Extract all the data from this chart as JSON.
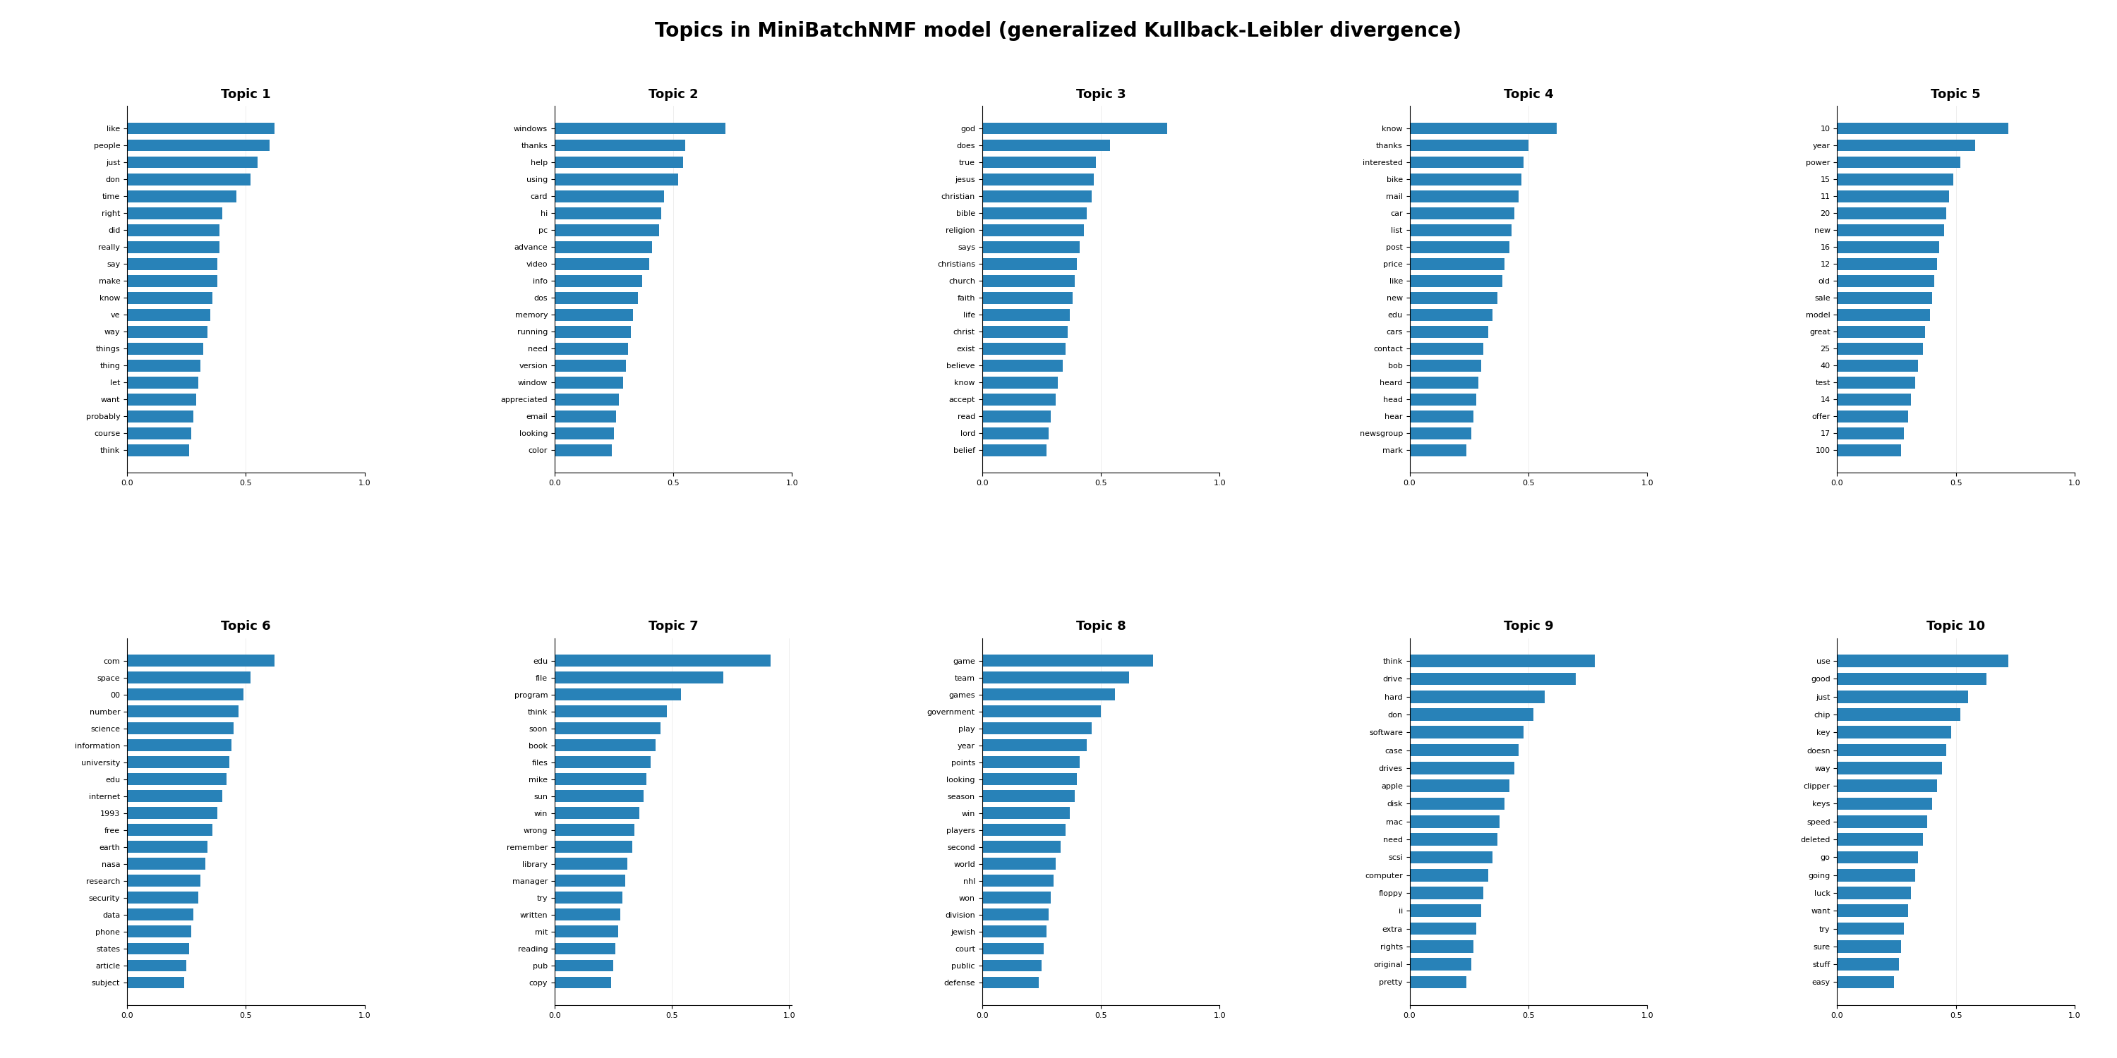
{
  "title": "Topics in MiniBatchNMF model (generalized Kullback-Leibler divergence)",
  "bar_color": "#2882b8",
  "topics": [
    {
      "title": "Topic 1",
      "words": [
        "like",
        "people",
        "just",
        "don",
        "time",
        "right",
        "did",
        "really",
        "say",
        "make",
        "know",
        "ve",
        "way",
        "things",
        "thing",
        "let",
        "want",
        "probably",
        "course",
        "think"
      ],
      "values": [
        0.62,
        0.6,
        0.55,
        0.52,
        0.46,
        0.4,
        0.39,
        0.39,
        0.38,
        0.38,
        0.36,
        0.35,
        0.34,
        0.32,
        0.31,
        0.3,
        0.29,
        0.28,
        0.27,
        0.26
      ]
    },
    {
      "title": "Topic 2",
      "words": [
        "windows",
        "thanks",
        "help",
        "using",
        "card",
        "hi",
        "pc",
        "advance",
        "video",
        "info",
        "dos",
        "memory",
        "running",
        "need",
        "version",
        "window",
        "appreciated",
        "email",
        "looking",
        "color"
      ],
      "values": [
        0.72,
        0.55,
        0.54,
        0.52,
        0.46,
        0.45,
        0.44,
        0.41,
        0.4,
        0.37,
        0.35,
        0.33,
        0.32,
        0.31,
        0.3,
        0.29,
        0.27,
        0.26,
        0.25,
        0.24
      ]
    },
    {
      "title": "Topic 3",
      "words": [
        "god",
        "does",
        "true",
        "jesus",
        "christian",
        "bible",
        "religion",
        "says",
        "christians",
        "church",
        "faith",
        "life",
        "christ",
        "exist",
        "believe",
        "know",
        "accept",
        "read",
        "lord",
        "belief"
      ],
      "values": [
        0.78,
        0.54,
        0.48,
        0.47,
        0.46,
        0.44,
        0.43,
        0.41,
        0.4,
        0.39,
        0.38,
        0.37,
        0.36,
        0.35,
        0.34,
        0.32,
        0.31,
        0.29,
        0.28,
        0.27
      ]
    },
    {
      "title": "Topic 4",
      "words": [
        "know",
        "thanks",
        "interested",
        "bike",
        "mail",
        "car",
        "list",
        "post",
        "price",
        "like",
        "new",
        "edu",
        "cars",
        "contact",
        "bob",
        "heard",
        "head",
        "hear",
        "newsgroup",
        "mark"
      ],
      "values": [
        0.62,
        0.5,
        0.48,
        0.47,
        0.46,
        0.44,
        0.43,
        0.42,
        0.4,
        0.39,
        0.37,
        0.35,
        0.33,
        0.31,
        0.3,
        0.29,
        0.28,
        0.27,
        0.26,
        0.24
      ]
    },
    {
      "title": "Topic 5",
      "words": [
        "10",
        "year",
        "power",
        "15",
        "11",
        "20",
        "new",
        "16",
        "12",
        "old",
        "sale",
        "model",
        "great",
        "25",
        "40",
        "test",
        "14",
        "offer",
        "17",
        "100"
      ],
      "values": [
        0.72,
        0.58,
        0.52,
        0.49,
        0.47,
        0.46,
        0.45,
        0.43,
        0.42,
        0.41,
        0.4,
        0.39,
        0.37,
        0.36,
        0.34,
        0.33,
        0.31,
        0.3,
        0.28,
        0.27
      ]
    },
    {
      "title": "Topic 6",
      "words": [
        "com",
        "space",
        "00",
        "number",
        "science",
        "information",
        "university",
        "edu",
        "internet",
        "1993",
        "free",
        "earth",
        "nasa",
        "research",
        "security",
        "data",
        "phone",
        "states",
        "article",
        "subject"
      ],
      "values": [
        0.62,
        0.52,
        0.49,
        0.47,
        0.45,
        0.44,
        0.43,
        0.42,
        0.4,
        0.38,
        0.36,
        0.34,
        0.33,
        0.31,
        0.3,
        0.28,
        0.27,
        0.26,
        0.25,
        0.24
      ]
    },
    {
      "title": "Topic 7",
      "words": [
        "edu",
        "file",
        "program",
        "think",
        "soon",
        "book",
        "files",
        "mike",
        "sun",
        "win",
        "wrong",
        "remember",
        "library",
        "manager",
        "try",
        "written",
        "mit",
        "reading",
        "pub",
        "copy"
      ],
      "values": [
        0.92,
        0.72,
        0.54,
        0.48,
        0.45,
        0.43,
        0.41,
        0.39,
        0.38,
        0.36,
        0.34,
        0.33,
        0.31,
        0.3,
        0.29,
        0.28,
        0.27,
        0.26,
        0.25,
        0.24
      ]
    },
    {
      "title": "Topic 8",
      "words": [
        "game",
        "team",
        "games",
        "government",
        "play",
        "year",
        "points",
        "looking",
        "season",
        "win",
        "players",
        "second",
        "world",
        "nhl",
        "won",
        "division",
        "jewish",
        "court",
        "public",
        "defense"
      ],
      "values": [
        0.72,
        0.62,
        0.56,
        0.5,
        0.46,
        0.44,
        0.41,
        0.4,
        0.39,
        0.37,
        0.35,
        0.33,
        0.31,
        0.3,
        0.29,
        0.28,
        0.27,
        0.26,
        0.25,
        0.24
      ]
    },
    {
      "title": "Topic 9",
      "words": [
        "think",
        "drive",
        "hard",
        "don",
        "software",
        "case",
        "drives",
        "apple",
        "disk",
        "mac",
        "need",
        "scsi",
        "computer",
        "floppy",
        "ii",
        "extra",
        "rights",
        "original",
        "pretty"
      ],
      "values": [
        0.78,
        0.7,
        0.57,
        0.52,
        0.48,
        0.46,
        0.44,
        0.42,
        0.4,
        0.38,
        0.37,
        0.35,
        0.33,
        0.31,
        0.3,
        0.28,
        0.27,
        0.26,
        0.24
      ]
    },
    {
      "title": "Topic 10",
      "words": [
        "use",
        "good",
        "just",
        "chip",
        "key",
        "doesn",
        "way",
        "clipper",
        "keys",
        "speed",
        "deleted",
        "go",
        "going",
        "luck",
        "want",
        "try",
        "sure",
        "stuff",
        "easy"
      ],
      "values": [
        0.72,
        0.63,
        0.55,
        0.52,
        0.48,
        0.46,
        0.44,
        0.42,
        0.4,
        0.38,
        0.36,
        0.34,
        0.33,
        0.31,
        0.3,
        0.28,
        0.27,
        0.26,
        0.24
      ]
    }
  ]
}
